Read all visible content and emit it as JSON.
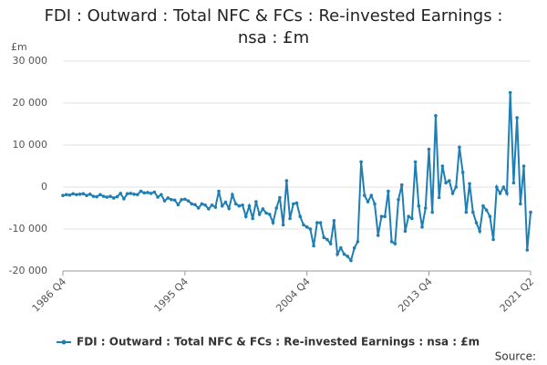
{
  "chart_data": {
    "type": "line",
    "title": "FDI : Outward : Total NFC & FCs : Re-invested Earnings : nsa : £m",
    "y_label": "£m",
    "source": "Source:",
    "categories": [
      "1986 Q4",
      null,
      null,
      null,
      null,
      null,
      null,
      null,
      null,
      null,
      null,
      null,
      null,
      null,
      null,
      null,
      null,
      null,
      null,
      null,
      null,
      null,
      null,
      null,
      null,
      null,
      null,
      null,
      null,
      null,
      null,
      null,
      null,
      null,
      null,
      null,
      "1995 Q4",
      null,
      null,
      null,
      null,
      null,
      null,
      null,
      null,
      null,
      null,
      null,
      null,
      null,
      null,
      null,
      null,
      null,
      null,
      null,
      null,
      null,
      null,
      null,
      null,
      null,
      null,
      null,
      null,
      null,
      null,
      null,
      null,
      null,
      null,
      null,
      "2004 Q4",
      null,
      null,
      null,
      null,
      null,
      null,
      null,
      null,
      null,
      null,
      null,
      null,
      null,
      null,
      null,
      null,
      null,
      null,
      null,
      null,
      null,
      null,
      null,
      null,
      null,
      null,
      null,
      null,
      null,
      null,
      null,
      null,
      null,
      null,
      null,
      "2013 Q4",
      null,
      null,
      null,
      null,
      null,
      null,
      null,
      null,
      null,
      null,
      null,
      null,
      null,
      null,
      null,
      null,
      null,
      null,
      null,
      null,
      null,
      null,
      null,
      null,
      null,
      null,
      null,
      null,
      null,
      "2021 Q2"
    ],
    "series": [
      {
        "name": "FDI : Outward : Total NFC & FCs : Re-invested Earnings : nsa : £m",
        "color": "#1f7fb4",
        "values": [
          -2000,
          -1800,
          -1900,
          -1600,
          -1800,
          -1700,
          -1600,
          -2000,
          -1700,
          -2200,
          -2300,
          -1800,
          -2200,
          -2400,
          -2200,
          -2600,
          -2300,
          -1500,
          -2800,
          -1600,
          -1500,
          -1700,
          -1800,
          -1000,
          -1400,
          -1300,
          -1500,
          -1200,
          -2400,
          -1800,
          -3300,
          -2600,
          -3000,
          -3100,
          -4200,
          -3000,
          -2900,
          -3300,
          -4000,
          -4200,
          -5000,
          -4000,
          -4300,
          -5200,
          -4300,
          -4800,
          -1000,
          -4500,
          -3600,
          -5100,
          -1800,
          -4000,
          -4500,
          -4300,
          -7000,
          -4500,
          -7500,
          -3500,
          -6500,
          -5200,
          -6200,
          -6500,
          -8500,
          -5000,
          -2500,
          -9000,
          1500,
          -7500,
          -4000,
          -3800,
          -7000,
          -9000,
          -9500,
          -10000,
          -14000,
          -8500,
          -8500,
          -12000,
          -12500,
          -13500,
          -8000,
          -16000,
          -14500,
          -16000,
          -16500,
          -17500,
          -14500,
          -13000,
          6000,
          -2000,
          -3500,
          -2000,
          -4000,
          -11500,
          -7000,
          -7000,
          -1000,
          -13000,
          -13500,
          -3000,
          500,
          -10500,
          -7000,
          -7500,
          6000,
          -4500,
          -9500,
          -5000,
          9000,
          -6000,
          17000,
          -2500,
          5000,
          1000,
          1500,
          -1500,
          0,
          9500,
          3500,
          -6000,
          800,
          -6000,
          -8500,
          -10500,
          -4500,
          -5500,
          -7000,
          -12500,
          0,
          -1500,
          0,
          -1500,
          22500,
          1000,
          16500,
          -4000,
          5000,
          -15000,
          -6000
        ]
      }
    ],
    "ylim": [
      -20000,
      30000
    ],
    "yticks": [
      {
        "value": -20000,
        "label": "-20 000"
      },
      {
        "value": -10000,
        "label": "-10 000"
      },
      0,
      {
        "value": 10000,
        "label": "10 000"
      },
      {
        "value": 20000,
        "label": "20 000"
      },
      {
        "value": 30000,
        "label": "30 000"
      }
    ],
    "grid": true
  }
}
